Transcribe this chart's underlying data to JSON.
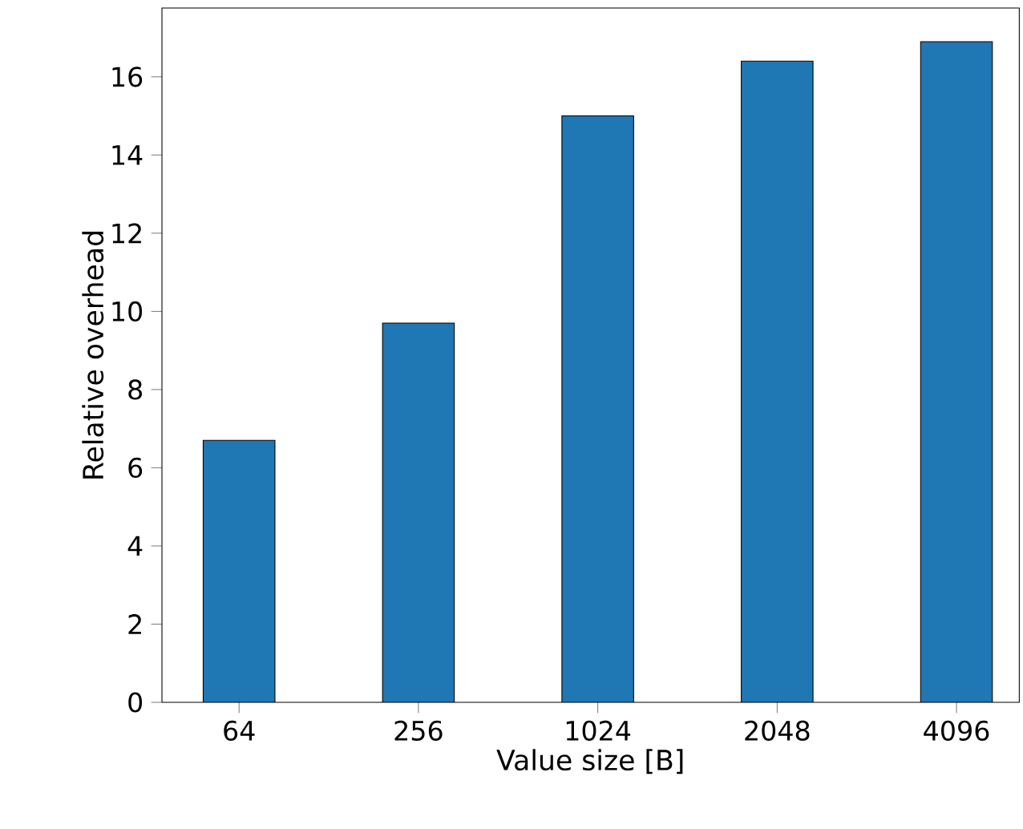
{
  "chart_data": {
    "type": "bar",
    "xlabel": "Value size [B]",
    "ylabel": "Relative overhead",
    "categories": [
      "64",
      "256",
      "1024",
      "2048",
      "4096"
    ],
    "values": [
      6.7,
      9.7,
      15.0,
      16.4,
      16.9
    ],
    "color": "#1f77b4",
    "ylim": [
      0,
      17.76
    ],
    "yticks": [
      0,
      2,
      4,
      6,
      8,
      10,
      12,
      14,
      16
    ]
  }
}
